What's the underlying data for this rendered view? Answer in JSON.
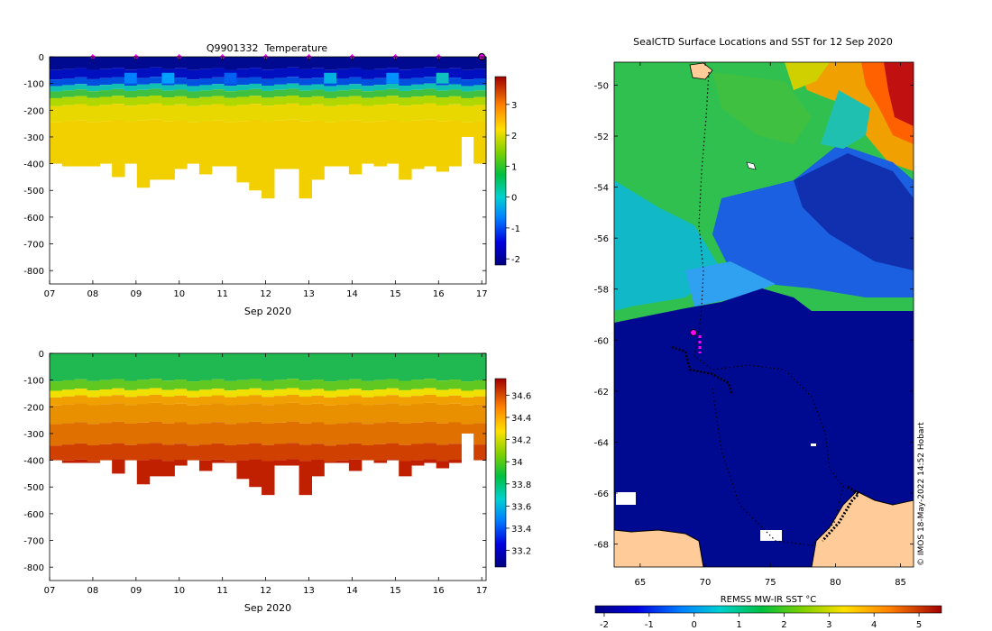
{
  "chart_data": [
    {
      "type": "heatmap",
      "title": "Q9901332  Temperature",
      "xlabel": "Sep 2020",
      "ylabel": "",
      "x_ticks": [
        "07",
        "08",
        "09",
        "10",
        "11",
        "12",
        "13",
        "14",
        "15",
        "16",
        "17"
      ],
      "y_ticks": [
        "0",
        "-100",
        "-200",
        "-300",
        "-400",
        "-500",
        "-600",
        "-700",
        "-800"
      ],
      "ylim": [
        -850,
        0
      ],
      "xlim": [
        7,
        17.1
      ],
      "colorbar": {
        "ticks": [
          "-2",
          "-1",
          "0",
          "1",
          "2",
          "3"
        ],
        "range": [
          -2.2,
          3.9
        ]
      },
      "markers_x": [
        8,
        9,
        10,
        11,
        12,
        13,
        14,
        15,
        16
      ],
      "last_marker_x": 17,
      "profile_bottom_depths": [
        -400,
        -410,
        -410,
        -410,
        -400,
        -450,
        -400,
        -490,
        -460,
        -460,
        -420,
        -400,
        -440,
        -410,
        -410,
        -470,
        -500,
        -530,
        -420,
        -420,
        -530,
        -460,
        -410,
        -410,
        -440,
        -400,
        -410,
        -400,
        -460,
        -420,
        -410,
        -430,
        -410,
        -300,
        -400
      ],
      "layers": {
        "surface": "-1.8 to 0.5",
        "thermocline_depth": "-100 to -200",
        "deep": "2 to 2.6"
      }
    },
    {
      "type": "heatmap",
      "title": "",
      "xlabel": "Sep 2020",
      "x_ticks": [
        "07",
        "08",
        "09",
        "10",
        "11",
        "12",
        "13",
        "14",
        "15",
        "16",
        "17"
      ],
      "y_ticks": [
        "0",
        "-100",
        "-200",
        "-300",
        "-400",
        "-500",
        "-600",
        "-700",
        "-800"
      ],
      "ylim": [
        -850,
        0
      ],
      "colorbar": {
        "ticks": [
          "33.2",
          "33.4",
          "33.6",
          "33.8",
          "34",
          "34.2",
          "34.4",
          "34.6"
        ],
        "range": [
          33.05,
          34.75
        ]
      }
    },
    {
      "type": "heatmap",
      "title": "SealCTD Surface Locations and SST for 12 Sep 2020",
      "x_ticks": [
        "65",
        "70",
        "75",
        "80",
        "85"
      ],
      "y_ticks": [
        "-50",
        "-52",
        "-54",
        "-56",
        "-58",
        "-60",
        "-62",
        "-64",
        "-66",
        "-68"
      ],
      "xlim": [
        63,
        86
      ],
      "ylim": [
        -68.9,
        -49.1
      ],
      "colorbar": {
        "label": "REMSS MW-IR SST °C",
        "ticks": [
          "-2",
          "-1",
          "0",
          "1",
          "2",
          "3",
          "4",
          "5"
        ],
        "range": [
          -2.2,
          5.5
        ]
      },
      "credit": "© IMOS 18-May-2022 14:52 Hobart"
    }
  ]
}
